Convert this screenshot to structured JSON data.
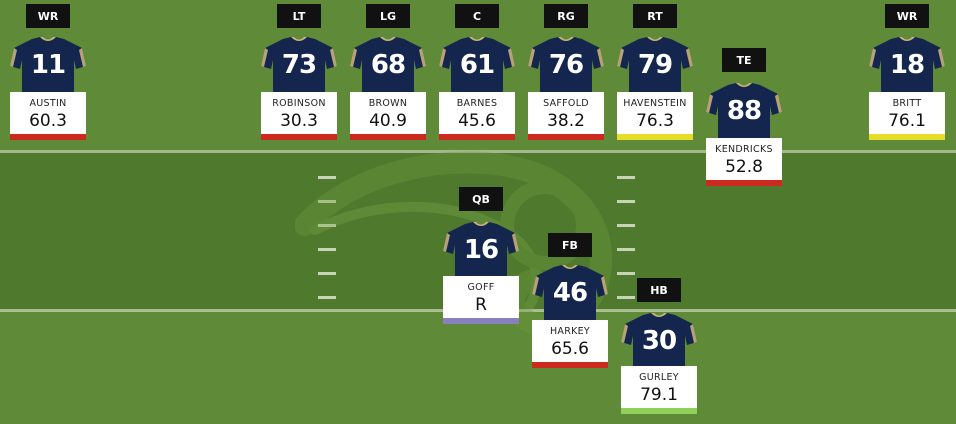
{
  "colors": {
    "red": "#cc2a1e",
    "yellow": "#e6dc2a",
    "green": "#8ed05a",
    "purple": "#8a7fbf",
    "jersey_navy": "#14264e",
    "jersey_trim": "#c9b07a"
  },
  "players": [
    {
      "position": "WR",
      "number": "11",
      "name": "AUSTIN",
      "grade": "60.3",
      "grade_color": "red"
    },
    {
      "position": "LT",
      "number": "73",
      "name": "ROBINSON",
      "grade": "30.3",
      "grade_color": "red"
    },
    {
      "position": "LG",
      "number": "68",
      "name": "BROWN",
      "grade": "40.9",
      "grade_color": "red"
    },
    {
      "position": "C",
      "number": "61",
      "name": "BARNES",
      "grade": "45.6",
      "grade_color": "red"
    },
    {
      "position": "RG",
      "number": "76",
      "name": "SAFFOLD",
      "grade": "38.2",
      "grade_color": "red"
    },
    {
      "position": "RT",
      "number": "79",
      "name": "HAVENSTEIN",
      "grade": "76.3",
      "grade_color": "yellow"
    },
    {
      "position": "TE",
      "number": "88",
      "name": "KENDRICKS",
      "grade": "52.8",
      "grade_color": "red"
    },
    {
      "position": "WR",
      "number": "18",
      "name": "BRITT",
      "grade": "76.1",
      "grade_color": "yellow"
    },
    {
      "position": "QB",
      "number": "16",
      "name": "GOFF",
      "grade": "R",
      "grade_color": "purple"
    },
    {
      "position": "FB",
      "number": "46",
      "name": "HARKEY",
      "grade": "65.6",
      "grade_color": "red"
    },
    {
      "position": "HB",
      "number": "30",
      "name": "GURLEY",
      "grade": "79.1",
      "grade_color": "green"
    }
  ]
}
